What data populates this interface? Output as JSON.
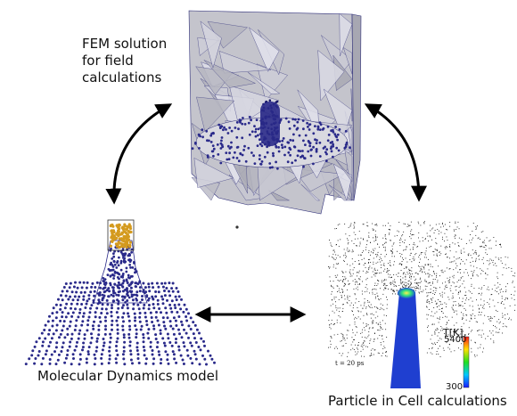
{
  "labels": {
    "fem": [
      "FEM solution",
      "for field",
      "calculations"
    ],
    "md": "Molecular Dynamics model",
    "pic": "Particle in Cell calculations"
  },
  "pic_panel": {
    "colorbar_title": "T[K]",
    "colorbar_max": "5400",
    "colorbar_min": "300",
    "time": "t = 20 ps"
  },
  "colors": {
    "mesh_face": "#b9b9c2",
    "mesh_edge": "#2f2f7a",
    "atom": "#2a2a8a",
    "tip_atoms": "#d49a1e",
    "pic_tip": "#1f3fd0",
    "arrow": "#000000"
  }
}
